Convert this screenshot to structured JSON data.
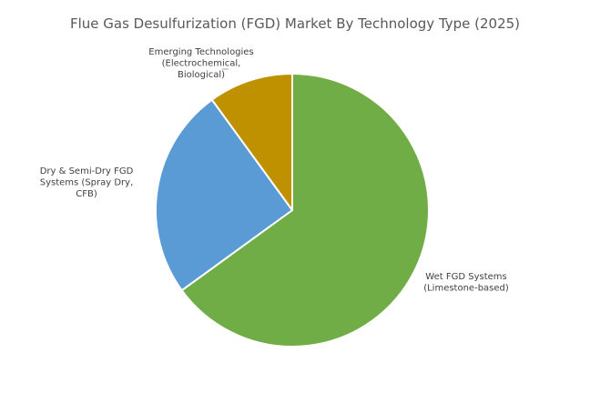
{
  "chart_data": {
    "type": "pie",
    "title": "Flue Gas Desulfurization (FGD) Market By Technology Type (2025)",
    "categories": [
      "Wet FGD Systems (Limestone-based)",
      "Dry & Semi-Dry FGD Systems (Spray Dry, CFB)",
      "Emerging Technologies (Electrochemical, Biological)"
    ],
    "values": [
      65,
      25,
      10
    ],
    "label_lines": [
      [
        "Wet FGD Systems",
        "(Limestone-based)"
      ],
      [
        "Dry & Semi-Dry FGD",
        "Systems (Spray Dry,",
        "CFB)"
      ],
      [
        "Emerging Technologies",
        "(Electrochemical,",
        "Biological)"
      ]
    ],
    "colors": [
      "#70ad47",
      "#5b9bd5",
      "#bf9000"
    ],
    "start_angle_deg": 0,
    "direction": "clockwise",
    "legend": "none"
  }
}
